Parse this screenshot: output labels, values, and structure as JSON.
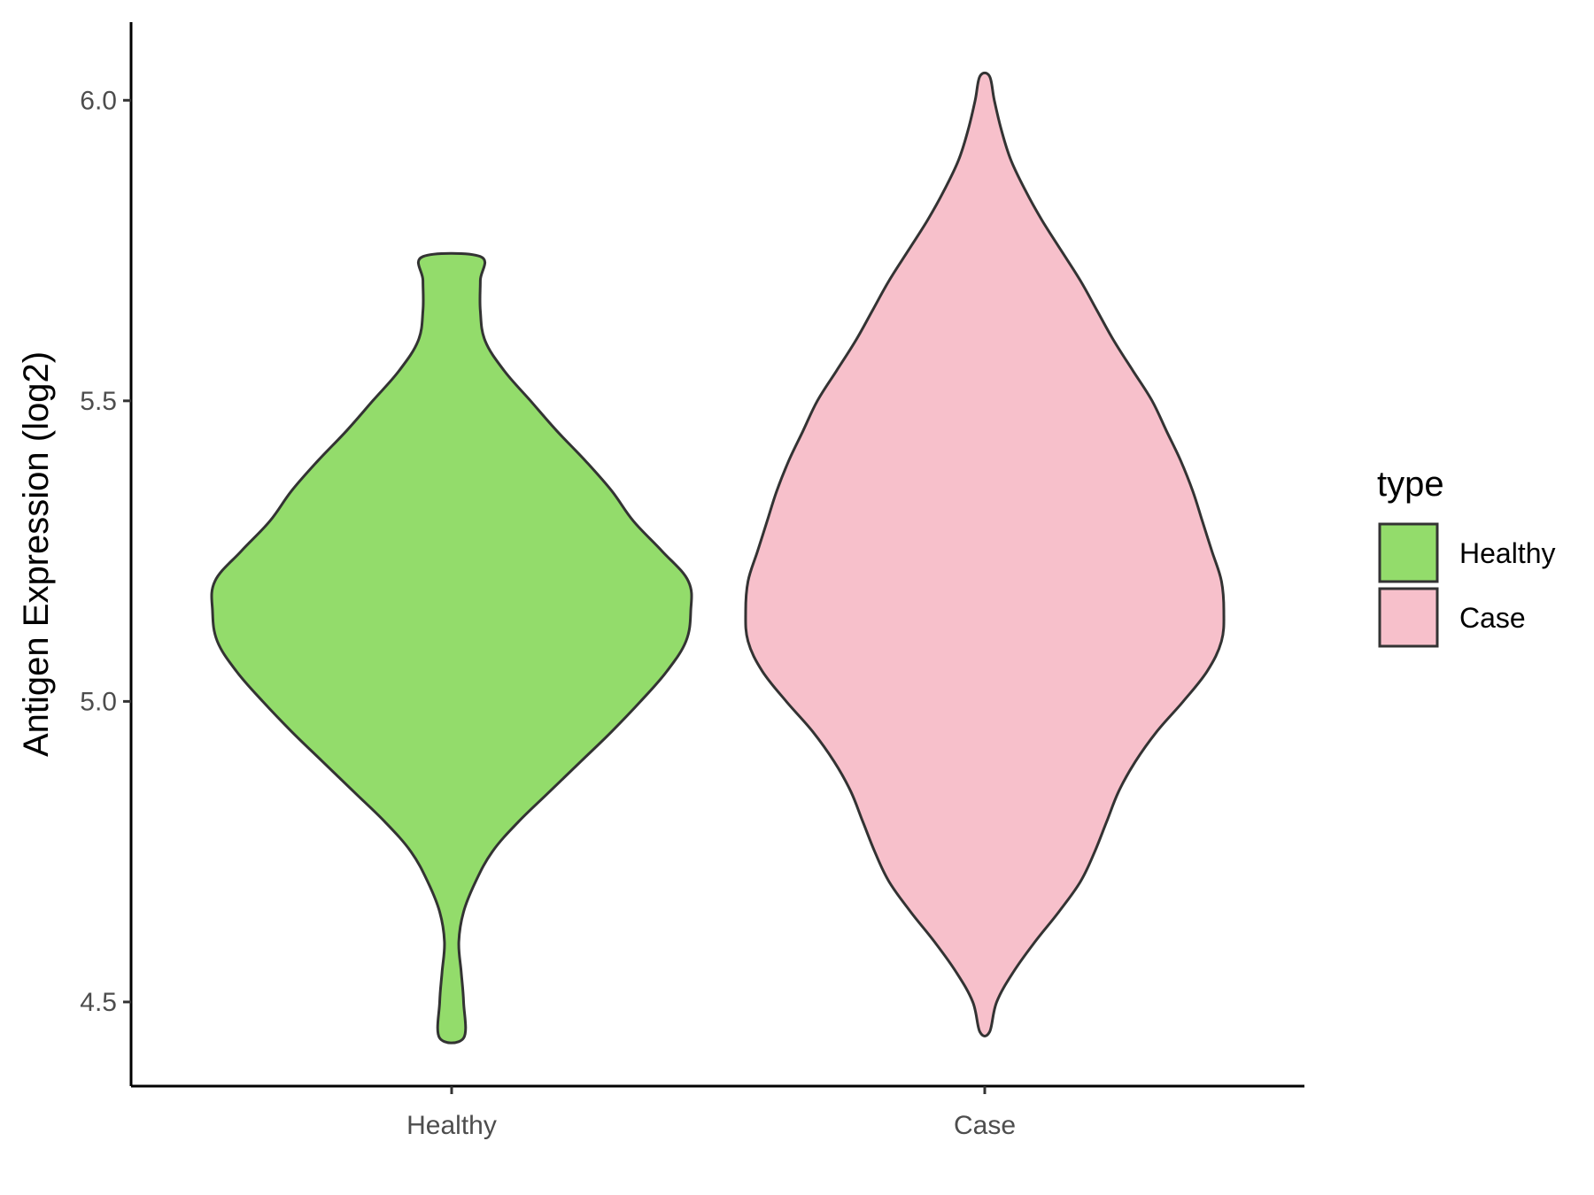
{
  "chart_data": {
    "type": "violin",
    "title": "",
    "xlabel": "",
    "ylabel": "Antigen Expression (log2)",
    "categories": [
      "Healthy",
      "Case"
    ],
    "ylim": [
      4.36,
      6.13
    ],
    "yticks": [
      4.5,
      5.0,
      5.5,
      6.0
    ],
    "ytick_labels": [
      "4.5",
      "5.0",
      "5.5",
      "6.0"
    ],
    "grid": false,
    "legend": {
      "title": "type",
      "position": "right",
      "entries": [
        {
          "label": "Healthy",
          "color": "#93dc6b"
        },
        {
          "label": "Case",
          "color": "#f7c0cb"
        }
      ]
    },
    "series": [
      {
        "name": "Healthy",
        "color": "#93dc6b",
        "y_min": 4.44,
        "y_max": 5.74,
        "density_profile": [
          [
            4.44,
            0.05
          ],
          [
            4.5,
            0.05
          ],
          [
            4.55,
            0.04
          ],
          [
            4.6,
            0.03
          ],
          [
            4.65,
            0.05
          ],
          [
            4.7,
            0.1
          ],
          [
            4.75,
            0.17
          ],
          [
            4.8,
            0.28
          ],
          [
            4.85,
            0.41
          ],
          [
            4.9,
            0.54
          ],
          [
            4.95,
            0.67
          ],
          [
            5.0,
            0.79
          ],
          [
            5.05,
            0.9
          ],
          [
            5.1,
            0.98
          ],
          [
            5.15,
            1.0
          ],
          [
            5.2,
            0.99
          ],
          [
            5.25,
            0.88
          ],
          [
            5.3,
            0.76
          ],
          [
            5.35,
            0.67
          ],
          [
            5.4,
            0.56
          ],
          [
            5.45,
            0.44
          ],
          [
            5.5,
            0.33
          ],
          [
            5.55,
            0.22
          ],
          [
            5.6,
            0.14
          ],
          [
            5.65,
            0.12
          ],
          [
            5.7,
            0.12
          ],
          [
            5.74,
            0.12
          ]
        ]
      },
      {
        "name": "Case",
        "color": "#f7c0cb",
        "y_min": 4.45,
        "y_max": 6.04,
        "density_profile": [
          [
            4.45,
            0.02
          ],
          [
            4.5,
            0.05
          ],
          [
            4.55,
            0.12
          ],
          [
            4.6,
            0.21
          ],
          [
            4.65,
            0.31
          ],
          [
            4.7,
            0.4
          ],
          [
            4.75,
            0.46
          ],
          [
            4.8,
            0.51
          ],
          [
            4.85,
            0.56
          ],
          [
            4.9,
            0.63
          ],
          [
            4.95,
            0.72
          ],
          [
            5.0,
            0.83
          ],
          [
            5.05,
            0.93
          ],
          [
            5.1,
            0.99
          ],
          [
            5.15,
            1.0
          ],
          [
            5.2,
            0.99
          ],
          [
            5.25,
            0.95
          ],
          [
            5.3,
            0.91
          ],
          [
            5.35,
            0.87
          ],
          [
            5.4,
            0.82
          ],
          [
            5.45,
            0.76
          ],
          [
            5.5,
            0.7
          ],
          [
            5.55,
            0.62
          ],
          [
            5.6,
            0.54
          ],
          [
            5.65,
            0.47
          ],
          [
            5.7,
            0.4
          ],
          [
            5.75,
            0.32
          ],
          [
            5.8,
            0.24
          ],
          [
            5.85,
            0.17
          ],
          [
            5.9,
            0.11
          ],
          [
            5.95,
            0.07
          ],
          [
            6.0,
            0.04
          ],
          [
            6.04,
            0.02
          ]
        ]
      }
    ]
  }
}
